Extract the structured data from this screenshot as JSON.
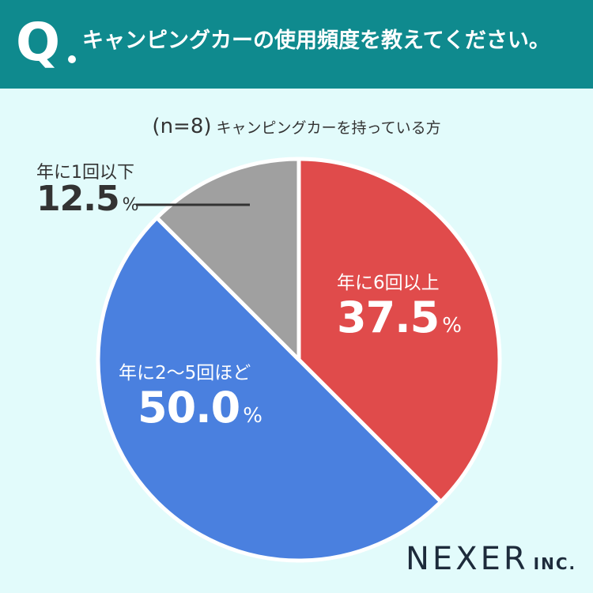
{
  "header": {
    "q_label": "Q",
    "question": "キャンピングカーの使用頻度を教えてください。"
  },
  "sample": {
    "n_label": "(n=8)",
    "description": "キャンピングカーを持っている方"
  },
  "chart_data": {
    "type": "pie",
    "categories": [
      "年に6回以上",
      "年に2〜5回ほど",
      "年に1回以下"
    ],
    "values": [
      37.5,
      50.0,
      12.5
    ],
    "value_labels": [
      "37.5",
      "50.0",
      "12.5"
    ],
    "unit": "%",
    "colors": [
      "#e04b4b",
      "#4a80df",
      "#a0a0a0"
    ]
  },
  "logo": {
    "name": "NEXER",
    "suffix": "INC."
  }
}
